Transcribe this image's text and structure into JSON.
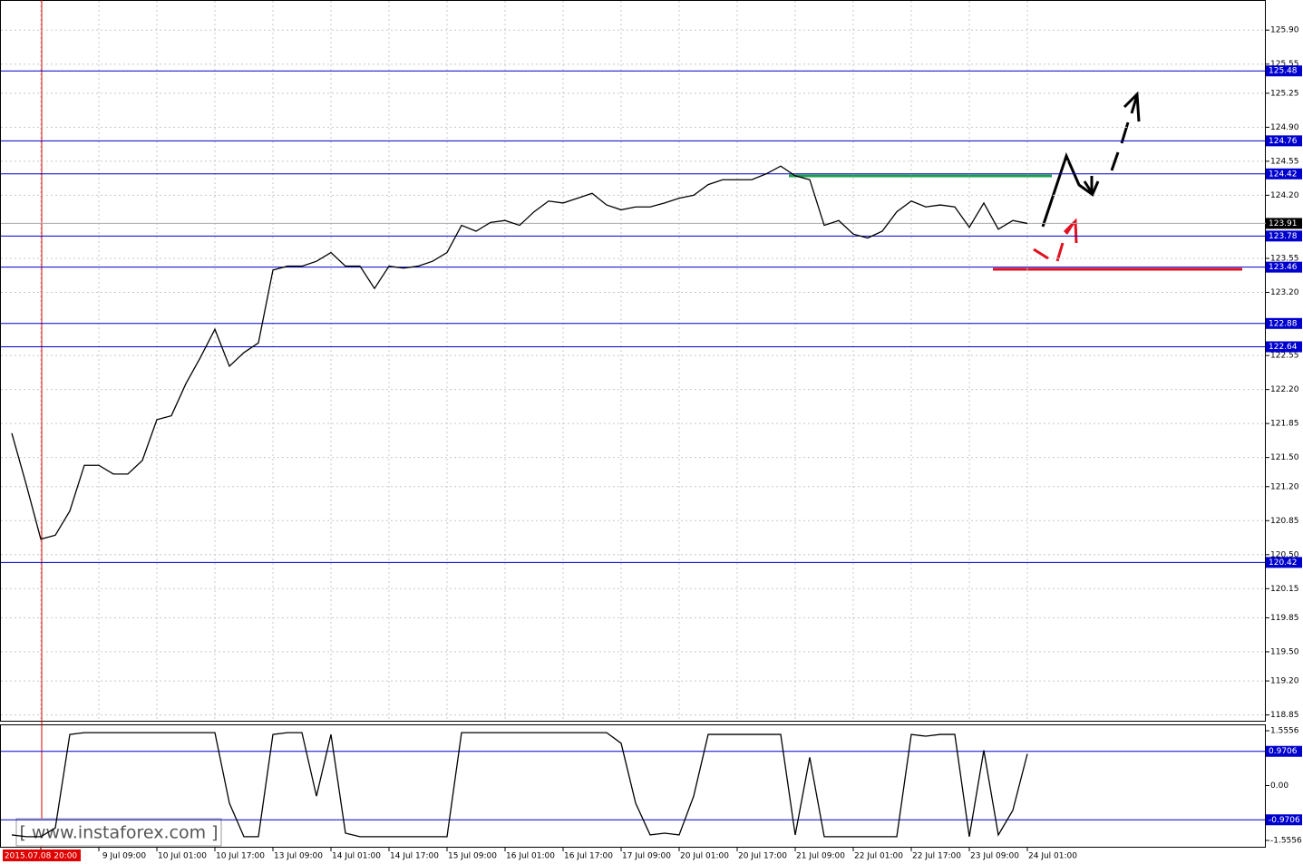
{
  "chart_data": [
    {
      "type": "line",
      "categories": [
        null,
        null,
        "2015.07.08 20:00",
        null,
        null,
        null,
        "9 Jul 09:00",
        null,
        null,
        null,
        "10 Jul 01:00",
        null,
        null,
        null,
        "10 Jul 17:00",
        null,
        null,
        null,
        "13 Jul 09:00",
        null,
        null,
        null,
        "14 Jul 01:00",
        null,
        null,
        null,
        "14 Jul 17:00",
        null,
        null,
        null,
        "15 Jul 09:00",
        null,
        null,
        null,
        "16 Jul 01:00",
        null,
        null,
        null,
        "16 Jul 17:00",
        null,
        null,
        null,
        "17 Jul 09:00",
        null,
        null,
        null,
        "20 Jul 01:00",
        null,
        null,
        null,
        "20 Jul 17:00",
        null,
        null,
        null,
        "21 Jul 09:00",
        null,
        null,
        null,
        "22 Jul 01:00",
        null,
        null,
        null,
        "22 Jul 17:00",
        null,
        null,
        null,
        "23 Jul 09:00",
        null,
        null,
        null,
        "24 Jul 01:00"
      ],
      "series": [
        {
          "color": "#000000",
          "values": [
            121.75,
            121.22,
            120.66,
            120.7,
            120.95,
            121.42,
            121.42,
            121.33,
            121.33,
            121.47,
            121.89,
            121.93,
            122.26,
            122.53,
            122.82,
            122.44,
            122.58,
            122.68,
            123.43,
            123.47,
            123.47,
            123.52,
            123.61,
            123.47,
            123.47,
            123.24,
            123.47,
            123.45,
            123.47,
            123.52,
            123.61,
            123.89,
            123.83,
            123.92,
            123.94,
            123.89,
            124.03,
            124.14,
            124.12,
            124.17,
            124.22,
            124.1,
            124.05,
            124.08,
            124.08,
            124.12,
            124.17,
            124.2,
            124.31,
            124.36,
            124.36,
            124.36,
            124.42,
            124.5,
            124.4,
            124.36,
            123.89,
            123.94,
            123.8,
            123.76,
            123.83,
            124.03,
            124.14,
            124.08,
            124.1,
            124.08,
            123.87,
            124.12,
            123.85,
            123.94,
            123.91
          ]
        }
      ],
      "levels": [
        125.48,
        124.76,
        124.42,
        123.78,
        123.46,
        122.88,
        122.64,
        120.42
      ],
      "level_color": "#0000cc",
      "last_price": 123.91,
      "ylim": [
        118.79,
        126.21
      ],
      "yticks": [
        {
          "value": 125.9,
          "label": "125.90"
        },
        125.55,
        125.25,
        {
          "value": 124.9,
          "label": "124.90"
        },
        124.55,
        {
          "value": 124.2,
          "label": "124.20"
        },
        123.55,
        {
          "value": 123.2,
          "label": "123.20"
        },
        122.55,
        {
          "value": 122.2,
          "label": "122.20"
        },
        121.85,
        {
          "value": 121.5,
          "label": "121.50"
        },
        {
          "value": 121.2,
          "label": "121.20"
        },
        120.85,
        {
          "value": 120.5,
          "label": "120.50"
        },
        120.15,
        119.85,
        {
          "value": 119.5,
          "label": "119.50"
        },
        {
          "value": 119.2,
          "label": "119.20"
        },
        118.85
      ],
      "grid": true
    },
    {
      "type": "line",
      "series": [
        {
          "color": "#000000",
          "values": [
            -1.4,
            -1.45,
            -1.45,
            -1.2,
            1.45,
            1.5,
            1.5,
            1.5,
            1.5,
            1.5,
            1.5,
            1.5,
            1.5,
            1.5,
            1.5,
            -0.5,
            -1.45,
            -1.45,
            1.45,
            1.5,
            1.5,
            -0.3,
            1.45,
            -1.35,
            -1.45,
            -1.45,
            -1.45,
            -1.45,
            -1.45,
            -1.45,
            -1.45,
            1.5,
            1.5,
            1.5,
            1.5,
            1.5,
            1.5,
            1.5,
            1.5,
            1.5,
            1.5,
            1.5,
            1.2,
            -0.5,
            -1.4,
            -1.35,
            -1.4,
            -0.3,
            1.45,
            1.45,
            1.45,
            1.45,
            1.45,
            1.45,
            -1.4,
            0.8,
            -1.45,
            -1.45,
            -1.45,
            -1.45,
            -1.45,
            -1.45,
            1.45,
            1.4,
            1.45,
            1.45,
            -1.45,
            1.0,
            -1.4,
            -0.7,
            0.9
          ]
        }
      ],
      "levels": [
        0.9706,
        -0.9706
      ],
      "level_color": "#0000cc",
      "ylim": [
        -1.761,
        1.735
      ],
      "yticks": [
        1.5556,
        {
          "value": 0,
          "label": "0.00"
        },
        -1.5556
      ]
    }
  ],
  "watermark": "[ www.instaforex.com ]"
}
